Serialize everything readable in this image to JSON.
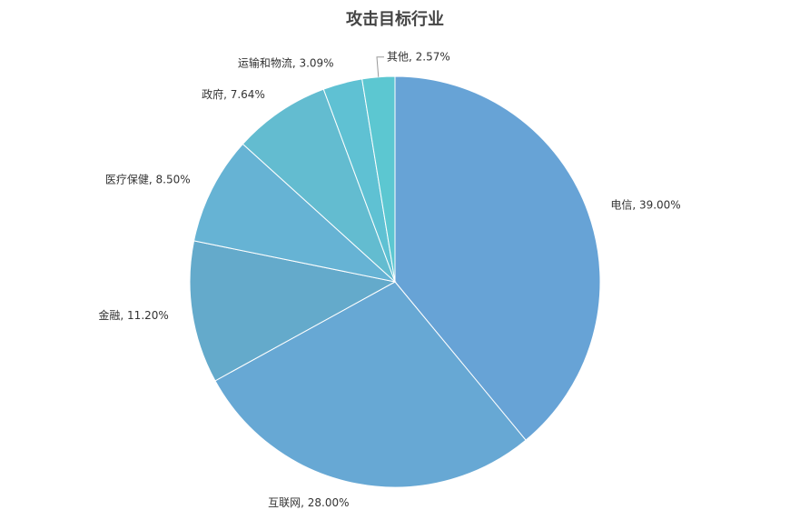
{
  "chart_data": {
    "type": "pie",
    "title": "攻击目标行业",
    "values": [
      39.0,
      28.0,
      11.2,
      8.5,
      7.64,
      3.09,
      2.57
    ],
    "value_labels": [
      "电信, 39.00%",
      "互联网, 28.00%",
      "金融, 11.20%",
      "医疗保健, 8.50%",
      "政府, 7.64%",
      "运输和物流, 3.09%",
      "其他, 2.57%"
    ],
    "colors": [
      "#67a3d6",
      "#67a8d4",
      "#64aacb",
      "#66b3d4",
      "#63bcd0",
      "#5fc1d3",
      "#5cc7d1"
    ]
  }
}
